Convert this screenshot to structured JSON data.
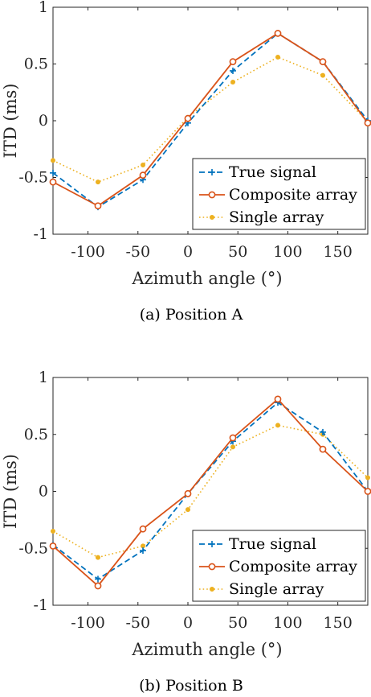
{
  "chart_data": [
    {
      "type": "line",
      "caption": "(a) Position A",
      "xlabel": "Azimuth angle (°)",
      "ylabel": "ITD (ms)",
      "xlim": [
        -135,
        180
      ],
      "ylim": [
        -1,
        1
      ],
      "xticks": [
        -100,
        -50,
        0,
        50,
        100,
        150
      ],
      "yticks": [
        -1,
        -0.5,
        0,
        0.5,
        1
      ],
      "x": [
        -135,
        -90,
        -45,
        0,
        45,
        90,
        135,
        180
      ],
      "legend_position": "bottom-right",
      "series": [
        {
          "name": "True signal",
          "style": "dashed-plus",
          "color": "#0072BD",
          "values": [
            -0.46,
            -0.76,
            -0.52,
            -0.02,
            0.44,
            0.77,
            0.52,
            0.0
          ]
        },
        {
          "name": "Composite array",
          "style": "solid-circle",
          "color": "#D95319",
          "values": [
            -0.54,
            -0.75,
            -0.48,
            0.02,
            0.52,
            0.77,
            0.52,
            -0.02
          ]
        },
        {
          "name": "Single array",
          "style": "dotted-dot",
          "color": "#EDB120",
          "values": [
            -0.35,
            -0.54,
            -0.39,
            0.03,
            0.34,
            0.56,
            0.4,
            -0.01
          ]
        }
      ]
    },
    {
      "type": "line",
      "caption": "(b) Position B",
      "xlabel": "Azimuth angle (°)",
      "ylabel": "ITD (ms)",
      "xlim": [
        -135,
        180
      ],
      "ylim": [
        -1,
        1
      ],
      "xticks": [
        -100,
        -50,
        0,
        50,
        100,
        150
      ],
      "yticks": [
        -1,
        -0.5,
        0,
        0.5,
        1
      ],
      "x": [
        -135,
        -90,
        -45,
        0,
        45,
        90,
        135,
        180
      ],
      "legend_position": "bottom-right",
      "series": [
        {
          "name": "True signal",
          "style": "dashed-plus",
          "color": "#0072BD",
          "values": [
            -0.47,
            -0.77,
            -0.52,
            -0.02,
            0.44,
            0.78,
            0.52,
            0.0
          ]
        },
        {
          "name": "Composite array",
          "style": "solid-circle",
          "color": "#D95319",
          "values": [
            -0.48,
            -0.83,
            -0.33,
            -0.02,
            0.47,
            0.81,
            0.37,
            0.0
          ]
        },
        {
          "name": "Single array",
          "style": "dotted-dot",
          "color": "#EDB120",
          "values": [
            -0.35,
            -0.58,
            -0.48,
            -0.16,
            0.39,
            0.58,
            0.5,
            0.12
          ]
        }
      ]
    }
  ]
}
